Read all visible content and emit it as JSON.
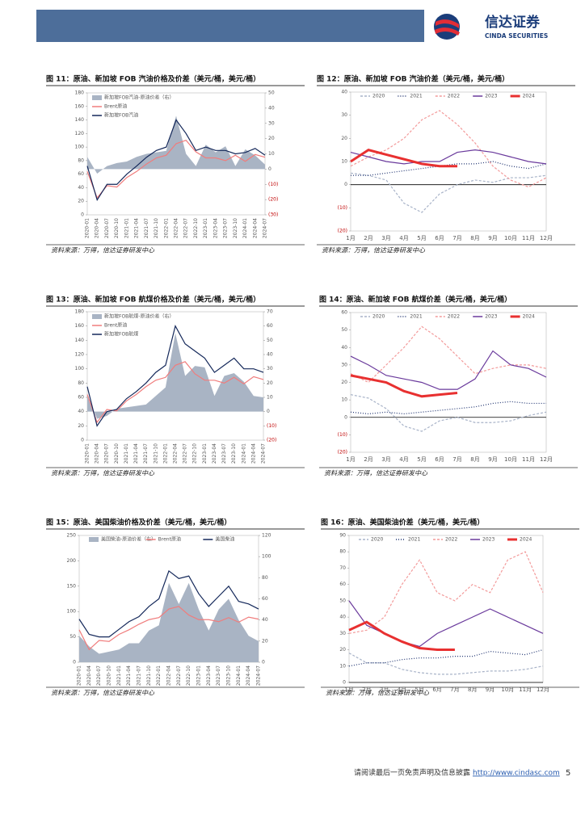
{
  "header": {
    "logo_cn": "信达证券",
    "logo_en": "CINDA SECURITIES"
  },
  "chart_data": [
    {
      "type": "line",
      "title": "图 11：原油、新加坡 FOB 汽油价格及价差（美元/桶，美元/桶）",
      "source": "资料来源：万得，信达证券研发中心",
      "rotated_labels": true,
      "zero_line": false,
      "legend": "top-left",
      "categories": [
        "2020-01",
        "2020-04",
        "2020-07",
        "2020-10",
        "2021-01",
        "2021-04",
        "2021-07",
        "2021-10",
        "2022-01",
        "2022-04",
        "2022-07",
        "2022-10",
        "2023-01",
        "2023-04",
        "2023-07",
        "2023-10",
        "2024-01",
        "2024-04",
        "2024-07"
      ],
      "ylim": [
        0,
        180
      ],
      "yticks": [
        0,
        20,
        40,
        60,
        80,
        100,
        120,
        140,
        160,
        180
      ],
      "y2lim": [
        -30,
        50
      ],
      "y2ticks": [
        {
          "value": -30,
          "label": "(30)"
        },
        {
          "value": -20,
          "label": "(20)"
        },
        {
          "value": -10,
          "label": "(10)"
        },
        0,
        10,
        20,
        30,
        40,
        50
      ],
      "series": [
        {
          "name": "新加坡FOB汽油-原油价差（右）",
          "color": "#a9b4c4",
          "style": "area",
          "axis": "y2",
          "values": [
            8,
            -3,
            2,
            4,
            5,
            8,
            10,
            11,
            12,
            35,
            10,
            2,
            16,
            11,
            15,
            2,
            13,
            9,
            3
          ]
        },
        {
          "name": "Brent原油",
          "color": "#f07c7c",
          "style": "line",
          "values": [
            64,
            25,
            43,
            41,
            55,
            64,
            75,
            84,
            88,
            105,
            110,
            93,
            84,
            84,
            80,
            88,
            79,
            89,
            85
          ]
        },
        {
          "name": "新加坡FOB汽油",
          "color": "#14285a",
          "style": "line",
          "values": [
            72,
            22,
            45,
            45,
            60,
            72,
            85,
            95,
            100,
            140,
            120,
            95,
            100,
            95,
            95,
            90,
            92,
            98,
            88
          ]
        }
      ]
    },
    {
      "type": "line",
      "title": "图 12：原油、新加坡 FOB 汽油价差（美元/桶，美元/桶）",
      "source": "资料来源：万得，信达证券研发中心",
      "rotated_labels": false,
      "zero_line": true,
      "legend": "top",
      "categories": [
        "1月",
        "2月",
        "3月",
        "4月",
        "5月",
        "6月",
        "7月",
        "8月",
        "9月",
        "10月",
        "11月",
        "12月"
      ],
      "ylim": [
        -20,
        40
      ],
      "yticks": [
        {
          "value": -20,
          "label": "(20)"
        },
        {
          "value": -10,
          "label": "(10)"
        },
        0,
        10,
        20,
        30,
        40
      ],
      "series": [
        {
          "name": "2020",
          "color": "#a8b3c8",
          "style": "line",
          "dash": "3,2",
          "values": [
            5,
            4,
            2,
            -8,
            -12,
            -4,
            0,
            2,
            1,
            3,
            3,
            4
          ]
        },
        {
          "name": "2021",
          "color": "#1f3370",
          "style": "line",
          "dash": "1,2",
          "values": [
            4,
            4,
            5,
            6,
            7,
            8,
            9,
            9,
            10,
            8,
            7,
            9
          ]
        },
        {
          "name": "2022",
          "color": "#f39a9a",
          "style": "line",
          "dash": "3,2",
          "values": [
            8,
            12,
            15,
            20,
            28,
            32,
            26,
            18,
            8,
            2,
            -1,
            3
          ]
        },
        {
          "name": "2023",
          "color": "#6a3a9c",
          "style": "line",
          "values": [
            14,
            12,
            10,
            9,
            10,
            10,
            14,
            15,
            14,
            12,
            10,
            9
          ]
        },
        {
          "name": "2024",
          "color": "#e83030",
          "style": "line",
          "width": 3,
          "values": [
            10,
            15,
            13,
            11,
            9,
            8,
            8,
            null,
            null,
            null,
            null,
            null
          ]
        }
      ]
    },
    {
      "type": "line",
      "title": "图 13：原油、新加坡 FOB 航煤价格及价差（美元/桶，美元/桶）",
      "source": "资料来源：万得，信达证券研发中心",
      "rotated_labels": true,
      "zero_line": false,
      "legend": "top-left",
      "categories": [
        "2020-01",
        "2020-04",
        "2020-07",
        "2020-10",
        "2021-01",
        "2021-04",
        "2021-07",
        "2021-10",
        "2022-01",
        "2022-04",
        "2022-07",
        "2022-10",
        "2023-01",
        "2023-04",
        "2023-07",
        "2023-10",
        "2024-01",
        "2024-04",
        "2024-07"
      ],
      "ylim": [
        0,
        180
      ],
      "yticks": [
        0,
        20,
        40,
        60,
        80,
        100,
        120,
        140,
        160,
        180
      ],
      "y2lim": [
        -20,
        70
      ],
      "y2ticks": [
        {
          "value": -20,
          "label": "(20)"
        },
        {
          "value": -10,
          "label": "(10)"
        },
        0,
        10,
        20,
        30,
        40,
        50,
        60,
        70
      ],
      "series": [
        {
          "name": "新加坡FOB航煤-原油价差（右）",
          "color": "#a9b4c4",
          "style": "area",
          "axis": "y2",
          "values": [
            11,
            -5,
            -3,
            2,
            3,
            4,
            5,
            11,
            17,
            55,
            25,
            32,
            31,
            11,
            25,
            27,
            21,
            11,
            10
          ]
        },
        {
          "name": "Brent原油",
          "color": "#f07c7c",
          "style": "line",
          "values": [
            64,
            25,
            43,
            41,
            55,
            64,
            75,
            84,
            88,
            105,
            110,
            93,
            84,
            84,
            80,
            88,
            79,
            89,
            85
          ]
        },
        {
          "name": "新加坡FOB航煤",
          "color": "#14285a",
          "style": "line",
          "values": [
            75,
            20,
            40,
            43,
            58,
            68,
            80,
            95,
            105,
            160,
            135,
            125,
            115,
            95,
            105,
            115,
            100,
            100,
            95
          ]
        }
      ]
    },
    {
      "type": "line",
      "title": "图 14：原油、新加坡 FOB 航煤价差（美元/桶，美元/桶）",
      "source": "资料来源：万得，信达证券研发中心",
      "rotated_labels": false,
      "zero_line": true,
      "legend": "top",
      "categories": [
        "1月",
        "2月",
        "3月",
        "4月",
        "5月",
        "6月",
        "7月",
        "8月",
        "9月",
        "10月",
        "11月",
        "12月"
      ],
      "ylim": [
        -20,
        60
      ],
      "yticks": [
        {
          "value": -20,
          "label": "(20)"
        },
        {
          "value": -10,
          "label": "(10)"
        },
        0,
        10,
        20,
        30,
        40,
        50,
        60
      ],
      "series": [
        {
          "name": "2020",
          "color": "#a8b3c8",
          "style": "line",
          "dash": "3,2",
          "values": [
            13,
            11,
            5,
            -5,
            -8,
            -2,
            0,
            -3,
            -3,
            -2,
            1,
            3
          ]
        },
        {
          "name": "2021",
          "color": "#1f3370",
          "style": "line",
          "dash": "1,2",
          "values": [
            3,
            2,
            3,
            2,
            3,
            4,
            5,
            6,
            8,
            9,
            8,
            8
          ]
        },
        {
          "name": "2022",
          "color": "#f39a9a",
          "style": "line",
          "dash": "3,2",
          "values": [
            25,
            20,
            30,
            40,
            52,
            45,
            35,
            25,
            28,
            30,
            30,
            28
          ]
        },
        {
          "name": "2023",
          "color": "#6a3a9c",
          "style": "line",
          "values": [
            35,
            30,
            24,
            22,
            20,
            16,
            16,
            22,
            38,
            30,
            28,
            23
          ]
        },
        {
          "name": "2024",
          "color": "#e83030",
          "style": "line",
          "width": 3,
          "values": [
            24,
            22,
            20,
            15,
            12,
            13,
            14,
            null,
            null,
            null,
            null,
            null
          ]
        }
      ]
    },
    {
      "type": "line",
      "title": "图 15：原油、美国柴油价格及价差（美元/桶，美元/桶）",
      "source": "资料来源：万得，信达证券研发中心",
      "rotated_labels": true,
      "zero_line": false,
      "legend": "top",
      "categories": [
        "2020-01",
        "2020-04",
        "2020-07",
        "2020-10",
        "2021-01",
        "2021-04",
        "2021-07",
        "2021-10",
        "2022-01",
        "2022-04",
        "2022-07",
        "2022-10",
        "2023-01",
        "2023-04",
        "2023-07",
        "2023-10",
        "2024-01",
        "2024-04",
        "2024-07"
      ],
      "ylim": [
        0,
        250
      ],
      "yticks": [
        0,
        50,
        100,
        150,
        200,
        250
      ],
      "y2lim": [
        0,
        120
      ],
      "y2ticks": [
        0,
        20,
        40,
        60,
        80,
        100,
        120
      ],
      "series": [
        {
          "name": "美国柴油-原油价差（右）",
          "color": "#a9b4c4",
          "style": "area",
          "axis": "y2",
          "values": [
            25,
            15,
            8,
            10,
            12,
            18,
            18,
            30,
            35,
            75,
            55,
            75,
            50,
            30,
            50,
            60,
            40,
            25,
            20
          ]
        },
        {
          "name": "Brent原油",
          "color": "#f07c7c",
          "style": "line",
          "values": [
            64,
            25,
            43,
            41,
            55,
            64,
            75,
            84,
            88,
            105,
            110,
            93,
            84,
            84,
            80,
            88,
            79,
            89,
            85
          ]
        },
        {
          "name": "美国柴油",
          "color": "#14285a",
          "style": "line",
          "values": [
            85,
            55,
            50,
            50,
            65,
            80,
            90,
            110,
            125,
            180,
            165,
            170,
            135,
            110,
            130,
            150,
            120,
            115,
            105
          ]
        }
      ]
    },
    {
      "type": "line",
      "title": "图 16：原油、美国柴油价差（美元/桶，美元/桶）",
      "source": "资料来源：万得，信达证券研发中心",
      "rotated_labels": false,
      "zero_line": true,
      "legend": "top",
      "categories": [
        "1月",
        "2月",
        "3月",
        "4月",
        "5月",
        "6月",
        "7月",
        "8月",
        "9月",
        "10月",
        "11月",
        "12月"
      ],
      "ylim": [
        0,
        90
      ],
      "yticks": [
        0,
        10,
        20,
        30,
        40,
        50,
        60,
        70,
        80,
        90
      ],
      "series": [
        {
          "name": "2020",
          "color": "#a8b3c8",
          "style": "line",
          "dash": "3,2",
          "values": [
            18,
            12,
            12,
            8,
            6,
            5,
            5,
            6,
            7,
            7,
            8,
            10
          ]
        },
        {
          "name": "2021",
          "color": "#1f3370",
          "style": "line",
          "dash": "1,2",
          "values": [
            10,
            12,
            12,
            14,
            15,
            15,
            16,
            16,
            19,
            18,
            17,
            20
          ]
        },
        {
          "name": "2022",
          "color": "#f39a9a",
          "style": "line",
          "dash": "3,2",
          "values": [
            30,
            32,
            40,
            60,
            75,
            55,
            50,
            60,
            55,
            75,
            80,
            55
          ]
        },
        {
          "name": "2023",
          "color": "#6a3a9c",
          "style": "line",
          "values": [
            50,
            35,
            30,
            25,
            22,
            30,
            35,
            40,
            45,
            40,
            35,
            30
          ]
        },
        {
          "name": "2024",
          "color": "#e83030",
          "style": "line",
          "width": 3,
          "values": [
            32,
            37,
            30,
            25,
            21,
            20,
            20,
            null,
            null,
            null,
            null,
            null
          ]
        }
      ]
    }
  ],
  "footer": {
    "disclaimer": "请阅读最后一页免责声明及信息披露",
    "url": "http://www.cindasc.com",
    "page": "5"
  }
}
